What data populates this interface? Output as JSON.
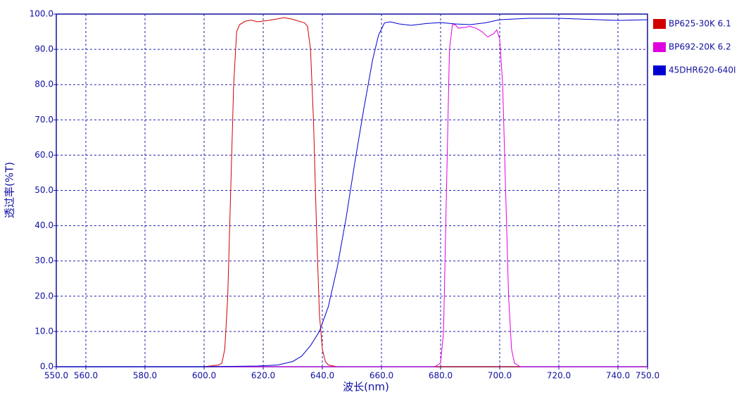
{
  "chart_data": {
    "type": "line",
    "xlabel": "波长(nm)",
    "ylabel": "透过率(%T)",
    "xlim": [
      550,
      750
    ],
    "ylim": [
      0,
      100
    ],
    "xticks": [
      {
        "value": 550,
        "label": "550.0"
      },
      {
        "value": 560,
        "label": "560.0"
      },
      {
        "value": 580,
        "label": "580.0"
      },
      {
        "value": 600,
        "label": "600.0"
      },
      {
        "value": 620,
        "label": "620.0"
      },
      {
        "value": 640,
        "label": "640.0"
      },
      {
        "value": 660,
        "label": "660.0"
      },
      {
        "value": 680,
        "label": "680.0"
      },
      {
        "value": 700,
        "label": "700.0"
      },
      {
        "value": 720,
        "label": "720.0"
      },
      {
        "value": 740,
        "label": "740.0"
      },
      {
        "value": 750,
        "label": "750.0"
      }
    ],
    "yticks": [
      {
        "value": 0,
        "label": "0.0"
      },
      {
        "value": 10,
        "label": "10.0"
      },
      {
        "value": 20,
        "label": "20.0"
      },
      {
        "value": 30,
        "label": "30.0"
      },
      {
        "value": 40,
        "label": "40.0"
      },
      {
        "value": 50,
        "label": "50.0"
      },
      {
        "value": 60,
        "label": "60.0"
      },
      {
        "value": 70,
        "label": "70.0"
      },
      {
        "value": 80,
        "label": "80.0"
      },
      {
        "value": 90,
        "label": "90.0"
      },
      {
        "value": 100,
        "label": "100.0"
      }
    ],
    "grid": true,
    "series": [
      {
        "name": "BP625-30K  6.1",
        "color": "#d00000",
        "x": [
          550,
          600,
          605,
          606,
          607,
          608,
          609,
          610,
          611,
          612,
          614,
          616,
          618,
          620,
          624,
          627,
          630,
          634,
          635,
          636,
          637,
          638,
          639,
          640,
          641,
          642,
          645,
          750
        ],
        "values": [
          0,
          0,
          0.5,
          1,
          5,
          20,
          50,
          80,
          95,
          97,
          98,
          98.3,
          97.8,
          98,
          98.5,
          99,
          98.5,
          97.5,
          96.5,
          90,
          70,
          40,
          15,
          5,
          1.5,
          0.5,
          0,
          0
        ]
      },
      {
        "name": "BP692-20K  6.2",
        "color": "#e000e0",
        "x": [
          550,
          678,
          680,
          681,
          682,
          683,
          684,
          685,
          686,
          688,
          690,
          692,
          694,
          696,
          698,
          699,
          700,
          701,
          702,
          703,
          704,
          705,
          707,
          750
        ],
        "values": [
          0,
          0,
          1,
          10,
          50,
          90,
          97,
          97,
          96,
          96.2,
          96.5,
          96,
          95,
          93.5,
          94.5,
          95.5,
          93,
          80,
          50,
          20,
          5,
          1,
          0,
          0
        ]
      },
      {
        "name": "45DHR620-640I",
        "color": "#0000d0",
        "x": [
          550,
          600,
          618,
          625,
          630,
          633,
          636,
          639,
          642,
          645,
          648,
          651,
          654,
          657,
          659,
          661,
          663,
          666,
          670,
          675,
          680,
          685,
          690,
          695,
          700,
          710,
          720,
          730,
          740,
          750
        ],
        "values": [
          0,
          0,
          0.2,
          0.5,
          1.5,
          3,
          6,
          10,
          17,
          28,
          42,
          58,
          73,
          87,
          94,
          97.5,
          97.8,
          97.2,
          96.8,
          97.3,
          97.6,
          97.2,
          97,
          97.5,
          98.4,
          98.8,
          98.8,
          98.5,
          98.2,
          98.4
        ]
      }
    ]
  }
}
